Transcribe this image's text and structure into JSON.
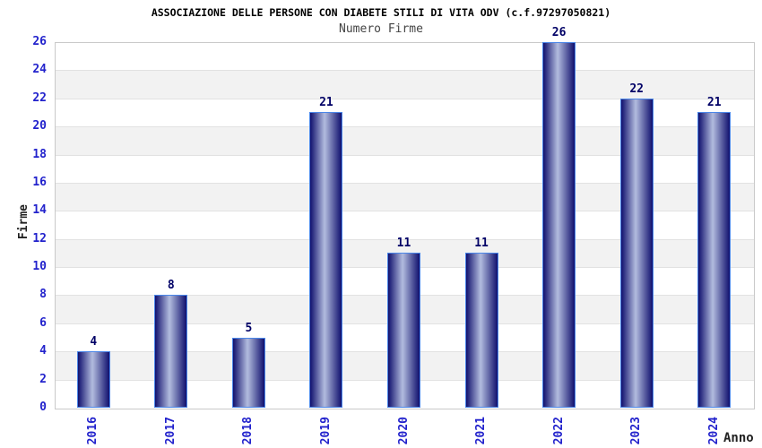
{
  "chart_data": {
    "type": "bar",
    "title": "ASSOCIAZIONE DELLE PERSONE CON DIABETE STILI DI VITA ODV (c.f.97297050821)",
    "subtitle": "Numero Firme",
    "xlabel": "Anno",
    "ylabel": "Firme",
    "categories": [
      "2016",
      "2017",
      "2018",
      "2019",
      "2020",
      "2021",
      "2022",
      "2023",
      "2024"
    ],
    "values": [
      4,
      8,
      5,
      21,
      11,
      11,
      26,
      22,
      21
    ],
    "ylim": [
      0,
      26
    ],
    "ytick_step": 2,
    "grid": "horizontal-bands-alternating",
    "legend": "none",
    "bar_label_position": "above",
    "x_tick_rotation": "vertical",
    "colors": {
      "background": "#ffffff",
      "title_color": "#000000",
      "subtitle_color": "#444444",
      "axis_title_color": "#222222",
      "tick_label": "#2222cc",
      "value_label": "#000066",
      "bar_edge": "#10106e",
      "bar_mid": "#b2bcde",
      "bar_border": "#4a86e8",
      "band_gray": "#f2f2f2",
      "band_white": "#ffffff",
      "gridline": "#e2e2e2",
      "plot_border": "#c9c9c9"
    }
  }
}
